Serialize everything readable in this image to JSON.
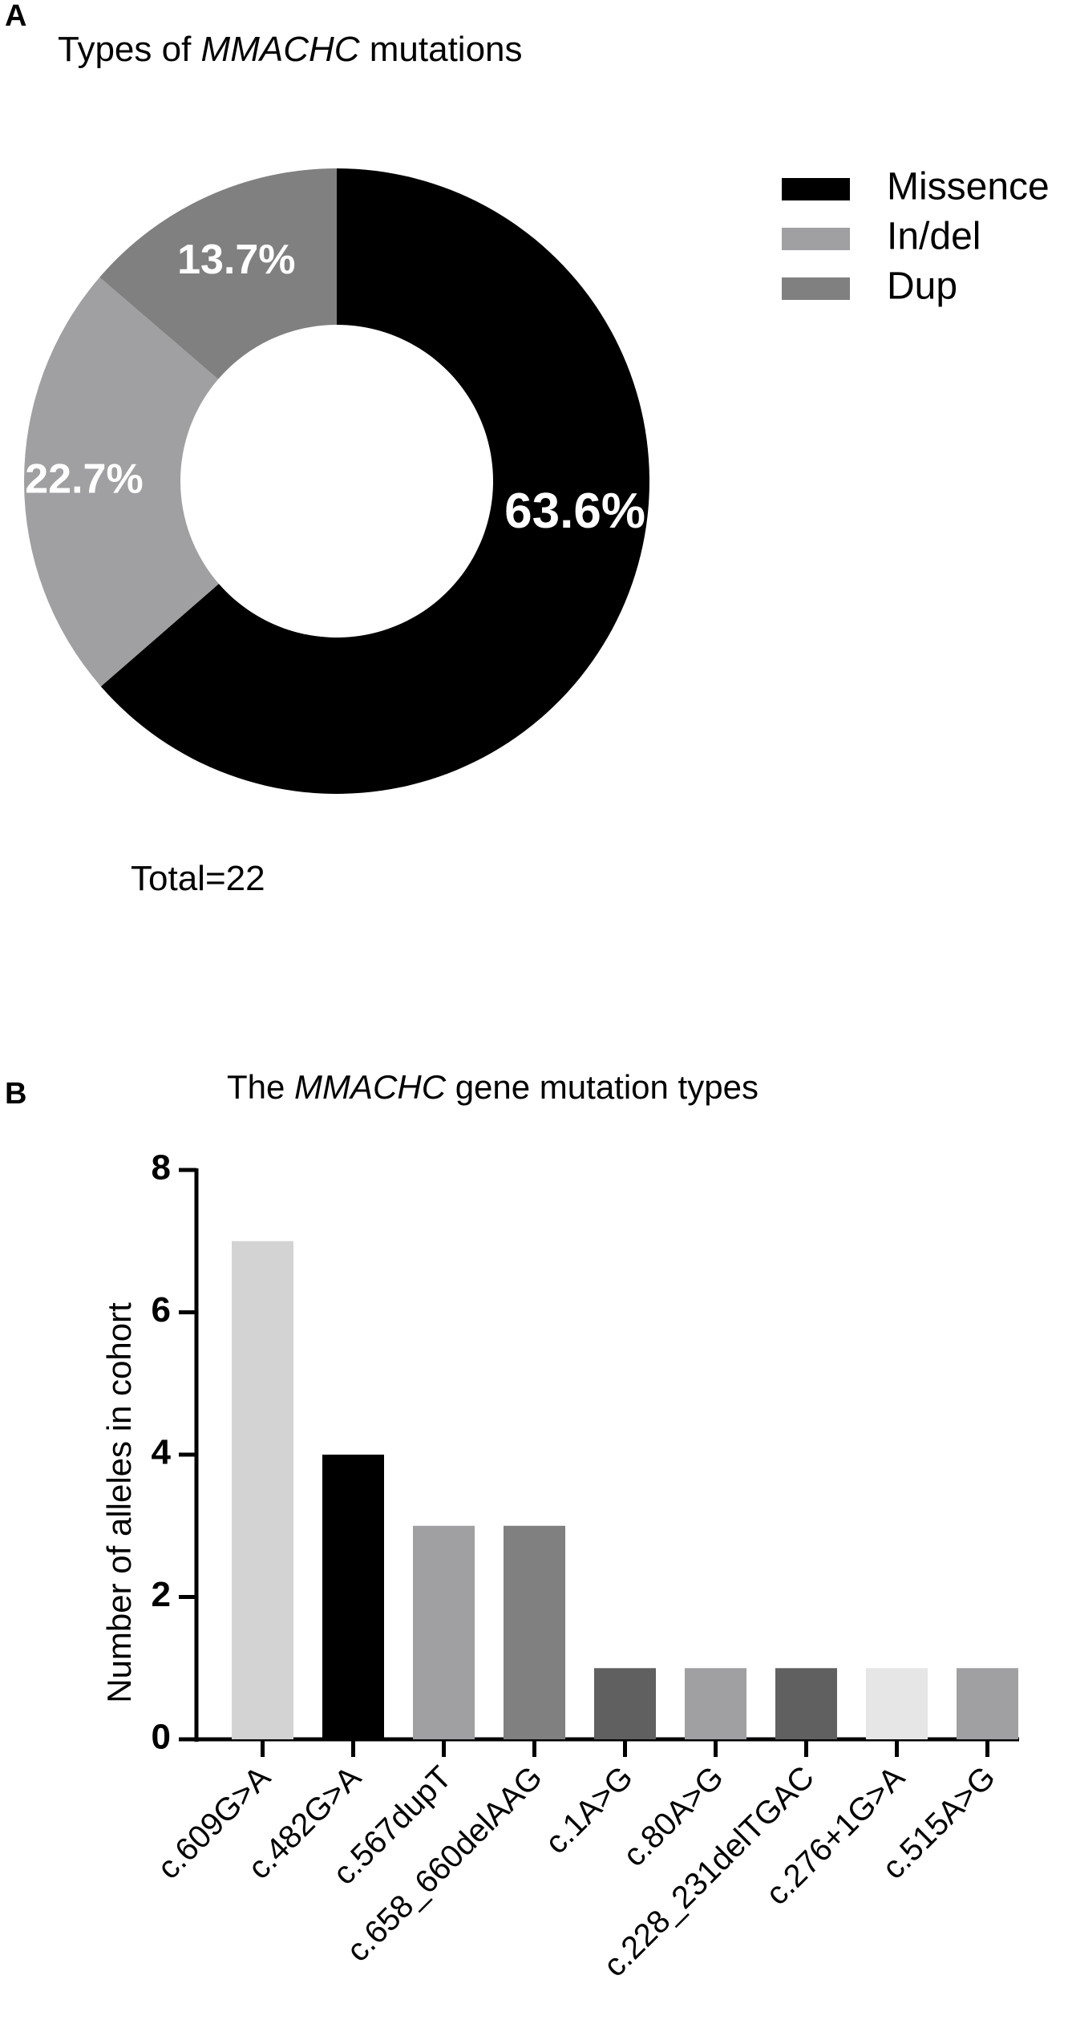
{
  "panelA": {
    "letter": "A",
    "title_prefix": "Types of ",
    "title_gene": "MMACHC",
    "title_suffix": " mutations",
    "total_text": "Total=22"
  },
  "panelB": {
    "letter": "B",
    "title_prefix": "The ",
    "title_gene": "MMACHC",
    "title_suffix": " gene mutation types"
  },
  "chart_data": [
    {
      "type": "pie",
      "variant": "donut",
      "title": "Types of MMACHC mutations",
      "categories": [
        "Missence",
        "In/del",
        "Dup"
      ],
      "values": [
        63.6,
        22.7,
        13.7
      ],
      "value_labels": [
        "63.6%",
        "22.7%",
        "13.7%"
      ],
      "colors": [
        "#000000",
        "#a0a0a2",
        "#808080"
      ],
      "legend": "right",
      "annotation": "Total=22"
    },
    {
      "type": "bar",
      "title": "The MMACHC gene mutation types",
      "xlabel": "",
      "ylabel": "Number of alleles in cohort",
      "ylim": [
        0,
        8
      ],
      "yticks": [
        0,
        2,
        4,
        6,
        8
      ],
      "ytick_labels": [
        "0",
        "2",
        "4",
        "6",
        "8"
      ],
      "grid": false,
      "categories": [
        "c.609G>A",
        "c.482G>A",
        "c.567dupT",
        "c.658_660delAAG",
        "c.1A>G",
        "c.80A>G",
        "c.228_231delTGAC",
        "c.276+1G>A",
        "c.515A>G"
      ],
      "values": [
        7,
        4,
        3,
        3,
        1,
        1,
        1,
        1,
        1
      ],
      "colors": [
        "#d3d3d3",
        "#000000",
        "#a0a0a2",
        "#808080",
        "#606060",
        "#a0a0a2",
        "#606060",
        "#e6e6e6",
        "#a0a0a2"
      ]
    }
  ]
}
